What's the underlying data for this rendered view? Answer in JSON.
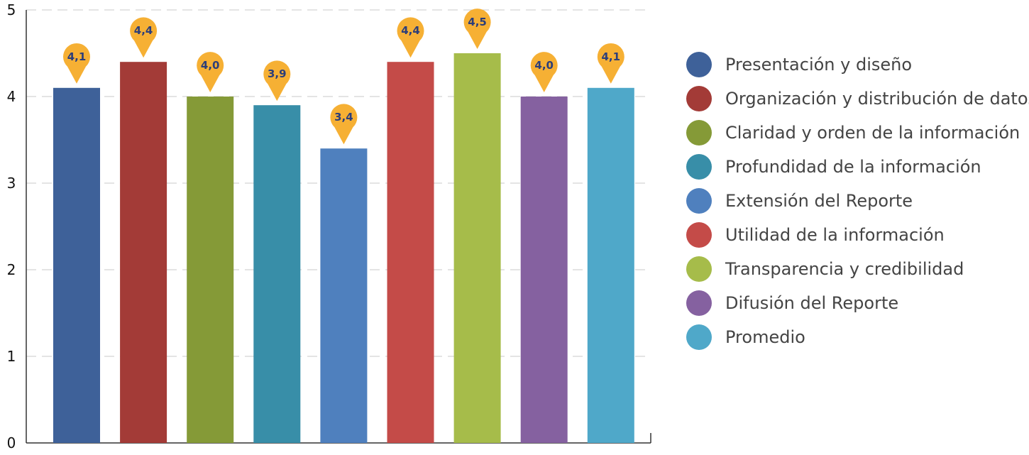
{
  "chart_data": {
    "type": "bar",
    "categories": [
      "Presentación y diseño",
      "Organización y distribución de datos",
      "Claridad y orden de la información",
      "Profundidad de la información",
      "Extensión del Reporte",
      "Utilidad de la información",
      "Transparencia y credibilidad",
      "Difusión del Reporte",
      "Promedio"
    ],
    "values": [
      4.1,
      4.4,
      4.0,
      3.9,
      3.4,
      4.4,
      4.5,
      4.0,
      4.1
    ],
    "value_labels": [
      "4,1",
      "4,4",
      "4,0",
      "3,9",
      "3,4",
      "4,4",
      "4,5",
      "4,0",
      "4,1"
    ],
    "colors": [
      "#3e6199",
      "#a33b37",
      "#859a37",
      "#388ea8",
      "#4f80be",
      "#c44b48",
      "#a6bc4a",
      "#8561a0",
      "#4fa8c9"
    ],
    "title": "",
    "xlabel": "",
    "ylabel": "",
    "ylim": [
      0,
      5
    ],
    "yticks": [
      "0",
      "1",
      "2",
      "3",
      "4",
      "5"
    ],
    "grid": true,
    "legend_position": "right",
    "pin_color": "#f6b034"
  }
}
